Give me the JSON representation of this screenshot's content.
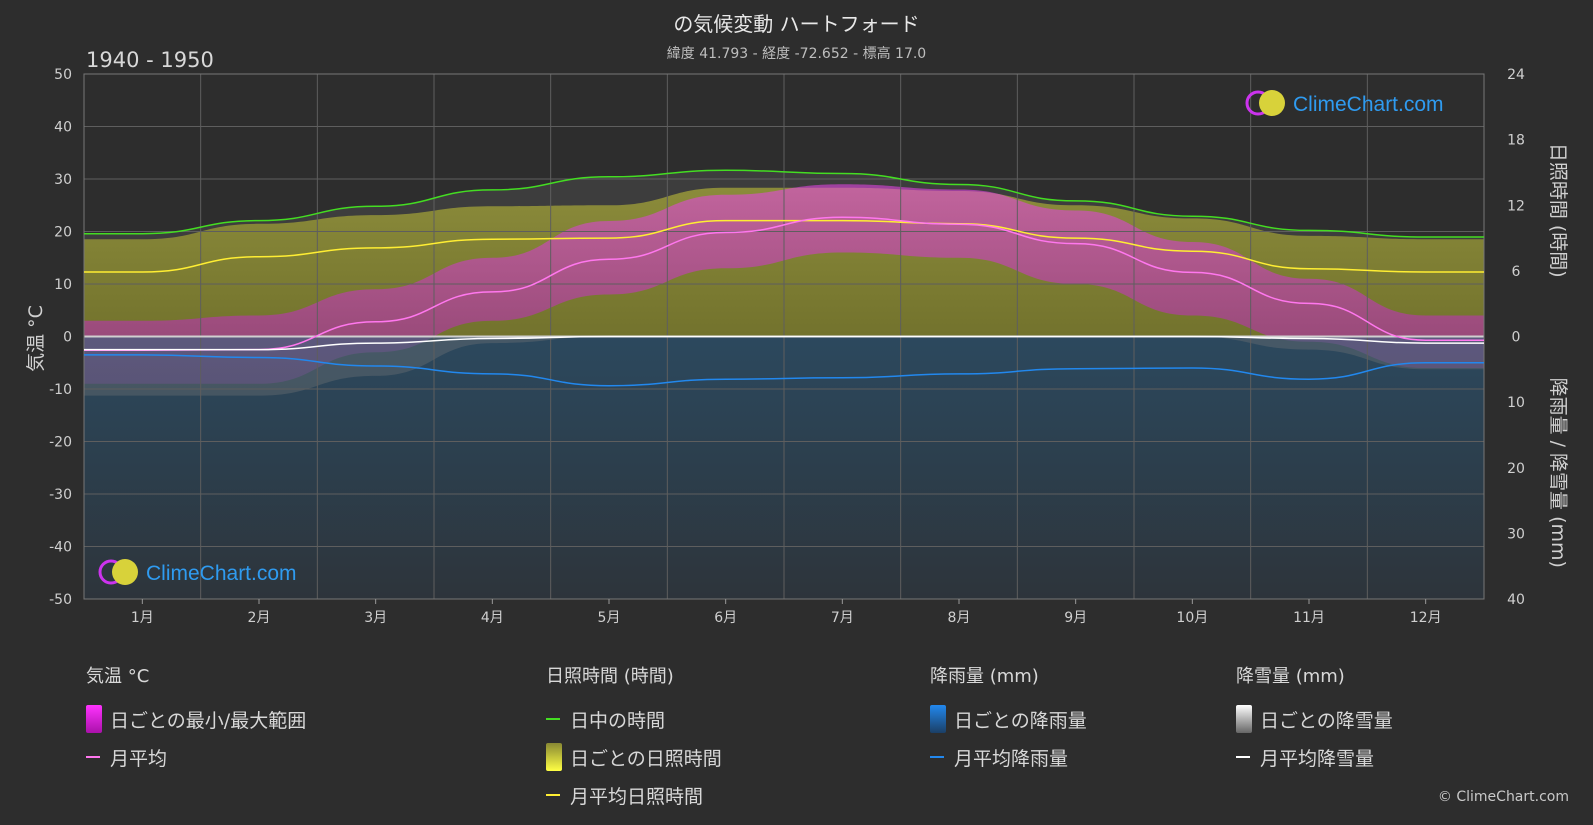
{
  "header": {
    "title": "の気候変動 ハートフォード",
    "subtitle": "緯度 41.793 - 経度 -72.652 - 標高 17.0",
    "period": "1940 - 1950"
  },
  "brand": {
    "logo_text": "ClimeChart.com",
    "copyright": "© ClimeChart.com"
  },
  "colors": {
    "background": "#2d2d2d",
    "daylight": "#44dd22",
    "sunshine_avg": "#ffee33",
    "temp_avg": "#ff77ee",
    "temp_range": "#dd33dd",
    "rain": "#2288ee",
    "snow": "#ffffff"
  },
  "chart_data": {
    "type": "line",
    "x_labels": [
      "1月",
      "2月",
      "3月",
      "4月",
      "5月",
      "6月",
      "7月",
      "8月",
      "9月",
      "10月",
      "11月",
      "12月"
    ],
    "left_axis": {
      "label": "気温 °C",
      "range": [
        -50,
        50
      ],
      "ticks": [
        50,
        40,
        30,
        20,
        10,
        0,
        -10,
        -20,
        -30,
        -40,
        -50
      ]
    },
    "right_axis_top": {
      "label": "日照時間 (時間)",
      "range": [
        0,
        24
      ],
      "ticks": [
        24,
        18,
        12,
        6,
        0
      ]
    },
    "right_axis_bottom": {
      "label": "降雨量 / 降雪量 (mm)",
      "range": [
        0,
        40
      ],
      "ticks": [
        10,
        20,
        30,
        40
      ]
    },
    "grid": true,
    "series": [
      {
        "name": "日中の時間",
        "unit": "hours",
        "values": [
          9.4,
          10.6,
          11.9,
          13.4,
          14.6,
          15.2,
          14.9,
          13.9,
          12.4,
          11.0,
          9.7,
          9.1
        ]
      },
      {
        "name": "月平均日照時間",
        "unit": "hours",
        "values": [
          5.9,
          7.3,
          8.1,
          8.9,
          9.0,
          10.6,
          10.6,
          10.3,
          9.0,
          7.8,
          6.2,
          5.9
        ]
      },
      {
        "name": "月平均",
        "unit": "°C",
        "values": [
          -2.6,
          -2.5,
          2.8,
          8.5,
          14.7,
          19.8,
          22.7,
          21.4,
          17.7,
          12.2,
          6.3,
          -0.7
        ]
      },
      {
        "name": "月平均降雨量",
        "unit": "mm",
        "values": [
          2.8,
          3.2,
          4.5,
          5.7,
          7.5,
          6.5,
          6.3,
          5.7,
          4.9,
          4.8,
          6.5,
          4.0
        ]
      },
      {
        "name": "月平均降雪量",
        "unit": "mm",
        "values": [
          2.0,
          2.0,
          1.0,
          0.3,
          0.0,
          0.0,
          0.0,
          0.0,
          0.0,
          0.0,
          0.3,
          1.0
        ]
      }
    ],
    "daily_temp_range_approx": {
      "min": [
        -9,
        -9,
        -3,
        3,
        8,
        13,
        16,
        15,
        10,
        4,
        -1,
        -6
      ],
      "max": [
        3,
        4,
        9,
        15,
        22,
        27,
        29,
        28,
        24,
        18,
        11,
        4
      ]
    }
  },
  "legend": {
    "temperature": {
      "heading": "気温 °C",
      "items": [
        "日ごとの最小/最大範囲",
        "月平均"
      ]
    },
    "sunshine": {
      "heading": "日照時間 (時間)",
      "items": [
        "日中の時間",
        "日ごとの日照時間",
        "月平均日照時間"
      ]
    },
    "rain": {
      "heading": "降雨量 (mm)",
      "items": [
        "日ごとの降雨量",
        "月平均降雨量"
      ]
    },
    "snow": {
      "heading": "降雪量 (mm)",
      "items": [
        "日ごとの降雪量",
        "月平均降雪量"
      ]
    }
  }
}
